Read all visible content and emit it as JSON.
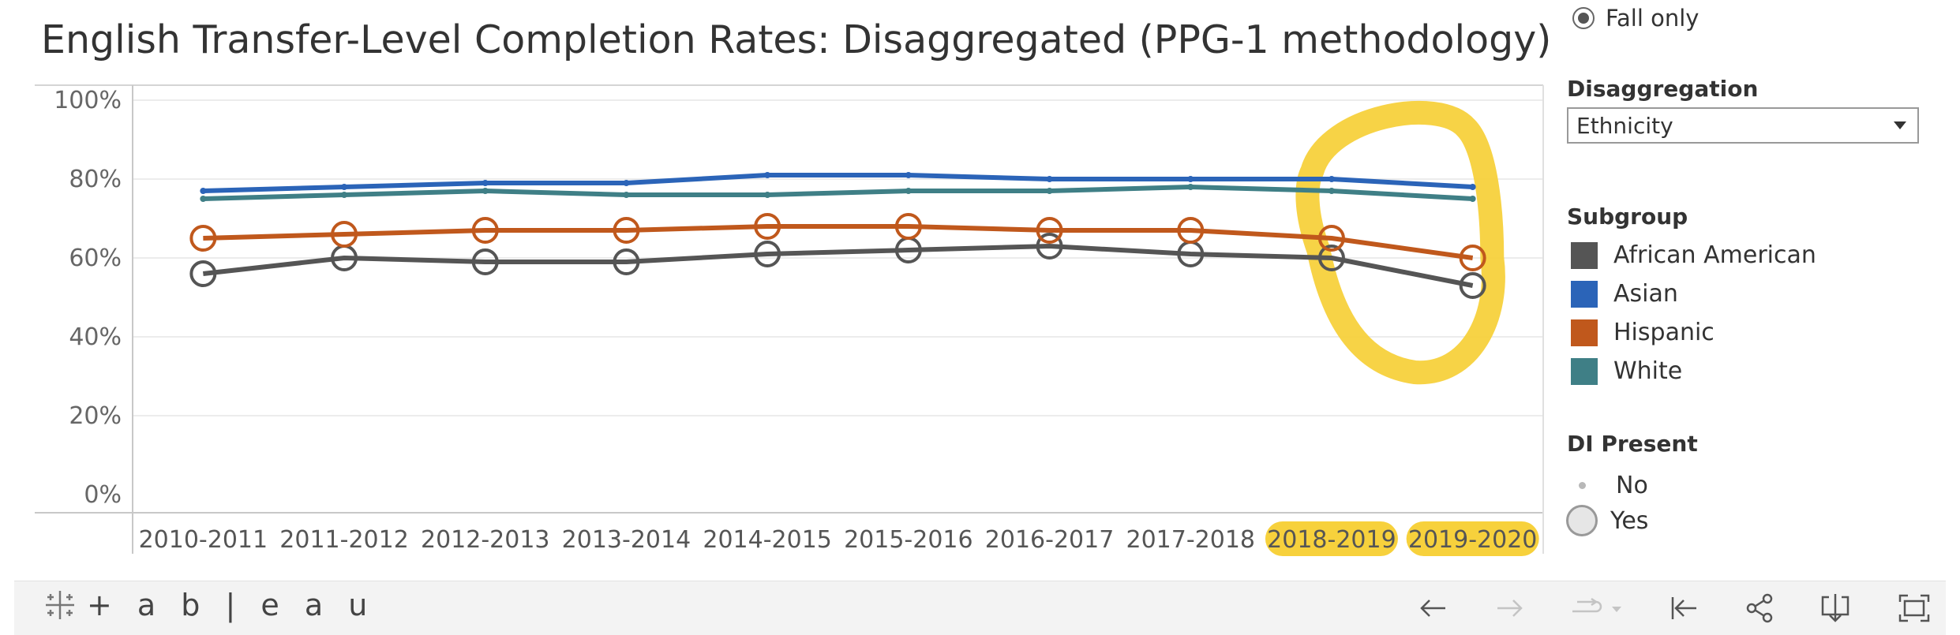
{
  "title": "English Transfer-Level Completion Rates: Disaggregated (PPG-1 methodology)",
  "term_filter": {
    "selected_label": "Fall only"
  },
  "disaggregation": {
    "title": "Disaggregation",
    "value": "Ethnicity"
  },
  "subgroup_legend": {
    "title": "Subgroup",
    "items": [
      {
        "label": "African American",
        "color": "#555555"
      },
      {
        "label": "Asian",
        "color": "#2b64b8"
      },
      {
        "label": "Hispanic",
        "color": "#c0581c"
      },
      {
        "label": "White",
        "color": "#3f7f86"
      }
    ]
  },
  "di_legend": {
    "title": "DI Present",
    "items": [
      {
        "label": "No",
        "marker": "small-dot"
      },
      {
        "label": "Yes",
        "marker": "large-circle"
      }
    ]
  },
  "highlight_color": "#f7d13c",
  "highlighted_categories": [
    "2018-2019",
    "2019-2020"
  ],
  "chart_data": {
    "type": "line",
    "title": "English Transfer-Level Completion Rates: Disaggregated (PPG-1 methodology)",
    "categories": [
      "2010-2011",
      "2011-2012",
      "2012-2013",
      "2013-2014",
      "2014-2015",
      "2015-2016",
      "2016-2017",
      "2017-2018",
      "2018-2019",
      "2019-2020"
    ],
    "ylim": [
      0,
      100
    ],
    "yticks": [
      0,
      20,
      40,
      60,
      80,
      100
    ],
    "ytick_labels": [
      "0%",
      "20%",
      "40%",
      "60%",
      "80%",
      "100%"
    ],
    "grid": true,
    "series": [
      {
        "name": "African American",
        "color": "#555555",
        "values": [
          56,
          60,
          59,
          59,
          61,
          62,
          63,
          61,
          60,
          53
        ],
        "di_present": [
          true,
          true,
          true,
          true,
          true,
          true,
          true,
          true,
          true,
          true
        ]
      },
      {
        "name": "Asian",
        "color": "#2b64b8",
        "values": [
          77,
          78,
          79,
          79,
          81,
          81,
          80,
          80,
          80,
          78
        ],
        "di_present": [
          false,
          false,
          false,
          false,
          false,
          false,
          false,
          false,
          false,
          false
        ]
      },
      {
        "name": "Hispanic",
        "color": "#c0581c",
        "values": [
          65,
          66,
          67,
          67,
          68,
          68,
          67,
          67,
          65,
          60
        ],
        "di_present": [
          true,
          true,
          true,
          true,
          true,
          true,
          true,
          true,
          true,
          true
        ]
      },
      {
        "name": "White",
        "color": "#3f7f86",
        "values": [
          75,
          76,
          77,
          76,
          76,
          77,
          77,
          78,
          77,
          75
        ],
        "di_present": [
          false,
          false,
          false,
          false,
          false,
          false,
          false,
          false,
          false,
          false
        ]
      }
    ]
  },
  "toolbar": {
    "logo_text": "+ a b | e a u",
    "icons": [
      "undo-icon",
      "redo-icon",
      "revert-icon",
      "reset-icon",
      "share-icon",
      "download-icon",
      "fullscreen-icon"
    ]
  }
}
